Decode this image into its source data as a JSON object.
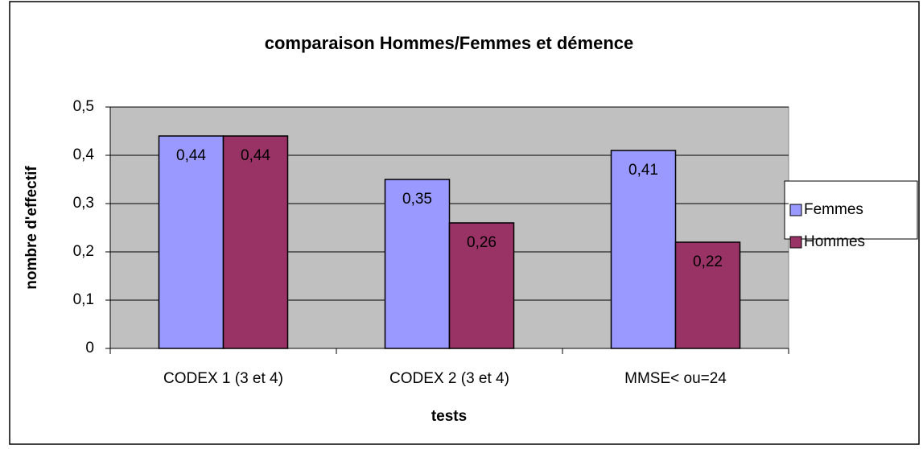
{
  "chart_data": {
    "type": "bar",
    "title": "comparaison Hommes/Femmes et démence",
    "x_label": "tests",
    "y_label": "nombre d'effectif",
    "categories": [
      "CODEX 1 (3 et 4)",
      "CODEX 2 (3 et 4)",
      "MMSE< ou=24"
    ],
    "series": [
      {
        "name": "Femmes",
        "color": "#9999ff",
        "values": [
          0.44,
          0.35,
          0.41
        ],
        "value_labels": [
          "0,44",
          "0,35",
          "0,41"
        ]
      },
      {
        "name": "Hommes",
        "color": "#993366",
        "values": [
          0.44,
          0.26,
          0.22
        ],
        "value_labels": [
          "0,44",
          "0,26",
          "0,22"
        ]
      }
    ],
    "ylim": [
      0,
      0.5
    ],
    "yticks": [
      0,
      {
        "value": 0.1,
        "label": "0,1"
      },
      {
        "value": 0.2,
        "label": "0,2"
      },
      {
        "value": 0.3,
        "label": "0,3"
      },
      {
        "value": 0.4,
        "label": "0,4"
      },
      {
        "value": 0.5,
        "label": "0,5"
      }
    ],
    "grid": true,
    "legend": "right"
  }
}
